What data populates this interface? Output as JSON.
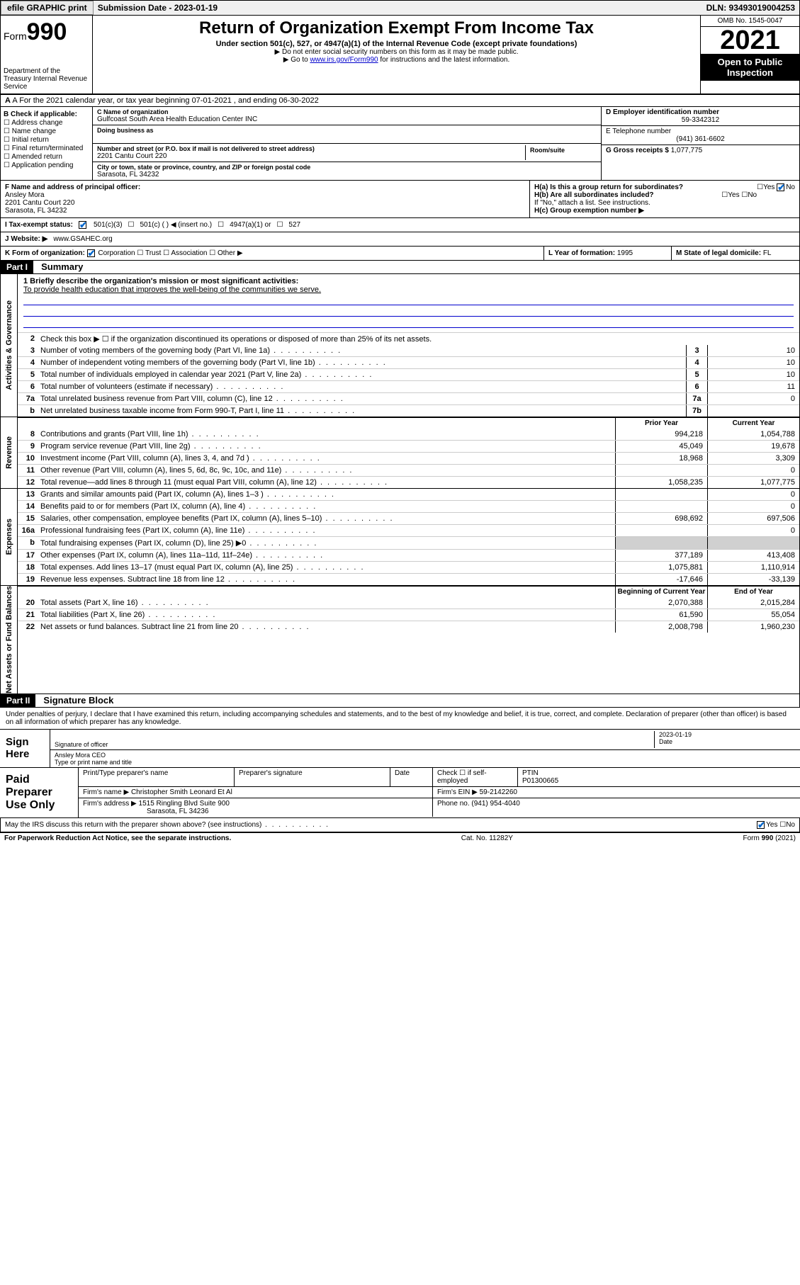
{
  "topbar": {
    "efile": "efile GRAPHIC print",
    "submission": "Submission Date - 2023-01-19",
    "dln": "DLN: 93493019004253"
  },
  "header": {
    "form_label": "Form",
    "form_number": "990",
    "dept": "Department of the Treasury Internal Revenue Service",
    "title": "Return of Organization Exempt From Income Tax",
    "sub1": "Under section 501(c), 527, or 4947(a)(1) of the Internal Revenue Code (except private foundations)",
    "sub2": "▶ Do not enter social security numbers on this form as it may be made public.",
    "sub3_pre": "▶ Go to ",
    "sub3_link": "www.irs.gov/Form990",
    "sub3_post": " for instructions and the latest information.",
    "omb": "OMB No. 1545-0047",
    "year": "2021",
    "open": "Open to Public Inspection"
  },
  "row_a": "A For the 2021 calendar year, or tax year beginning 07-01-2021  , and ending 06-30-2022",
  "col_b": {
    "header": "B Check if applicable:",
    "items": [
      "Address change",
      "Name change",
      "Initial return",
      "Final return/terminated",
      "Amended return",
      "Application pending"
    ]
  },
  "col_c": {
    "name_label": "C Name of organization",
    "name": "Gulfcoast South Area Health Education Center INC",
    "dba_label": "Doing business as",
    "addr_label": "Number and street (or P.O. box if mail is not delivered to street address)",
    "room_label": "Room/suite",
    "addr": "2201 Cantu Court 220",
    "city_label": "City or town, state or province, country, and ZIP or foreign postal code",
    "city": "Sarasota, FL  34232"
  },
  "col_de": {
    "d_label": "D Employer identification number",
    "d_val": "59-3342312",
    "e_label": "E Telephone number",
    "e_val": "(941) 361-6602",
    "g_label": "G Gross receipts $",
    "g_val": "1,077,775"
  },
  "section_f": {
    "label": "F Name and address of principal officer:",
    "name": "Ansley Mora",
    "addr1": "2201 Cantu Court 220",
    "addr2": "Sarasota, FL  34232"
  },
  "section_h": {
    "ha": "H(a)  Is this a group return for subordinates?",
    "ha_yes": "Yes",
    "ha_no": "No",
    "hb": "H(b)  Are all subordinates included?",
    "hb_yes": "Yes",
    "hb_no": "No",
    "hb_note": "If \"No,\" attach a list. See instructions.",
    "hc": "H(c)  Group exemption number ▶"
  },
  "row_i": {
    "label": "I   Tax-exempt status:",
    "opt1": "501(c)(3)",
    "opt2": "501(c) (  ) ◀ (insert no.)",
    "opt3": "4947(a)(1) or",
    "opt4": "527"
  },
  "row_j": {
    "label": "J   Website: ▶",
    "val": "www.GSAHEC.org"
  },
  "row_k": {
    "label": "K Form of organization:",
    "opts": [
      "Corporation",
      "Trust",
      "Association",
      "Other ▶"
    ]
  },
  "row_l": {
    "label": "L Year of formation:",
    "val": "1995"
  },
  "row_m": {
    "label": "M State of legal domicile:",
    "val": "FL"
  },
  "part1": {
    "hdr": "Part I",
    "title": "Summary",
    "vlabels": [
      "Activities & Governance",
      "Revenue",
      "Expenses",
      "Net Assets or Fund Balances"
    ],
    "q1": "1  Briefly describe the organization's mission or most significant activities:",
    "mission": "To provide health education that improves the well-being of the communities we serve.",
    "q2": "Check this box ▶ ☐  if the organization discontinued its operations or disposed of more than 25% of its net assets.",
    "lines_gov": [
      {
        "n": "3",
        "d": "Number of voting members of the governing body (Part VI, line 1a)",
        "box": "3",
        "v": "10"
      },
      {
        "n": "4",
        "d": "Number of independent voting members of the governing body (Part VI, line 1b)",
        "box": "4",
        "v": "10"
      },
      {
        "n": "5",
        "d": "Total number of individuals employed in calendar year 2021 (Part V, line 2a)",
        "box": "5",
        "v": "10"
      },
      {
        "n": "6",
        "d": "Total number of volunteers (estimate if necessary)",
        "box": "6",
        "v": "11"
      },
      {
        "n": "7a",
        "d": "Total unrelated business revenue from Part VIII, column (C), line 12",
        "box": "7a",
        "v": "0"
      },
      {
        "n": "b",
        "d": "Net unrelated business taxable income from Form 990-T, Part I, line 11",
        "box": "7b",
        "v": ""
      }
    ],
    "col_hdrs": {
      "prior": "Prior Year",
      "current": "Current Year"
    },
    "lines_rev": [
      {
        "n": "8",
        "d": "Contributions and grants (Part VIII, line 1h)",
        "p": "994,218",
        "c": "1,054,788"
      },
      {
        "n": "9",
        "d": "Program service revenue (Part VIII, line 2g)",
        "p": "45,049",
        "c": "19,678"
      },
      {
        "n": "10",
        "d": "Investment income (Part VIII, column (A), lines 3, 4, and 7d )",
        "p": "18,968",
        "c": "3,309"
      },
      {
        "n": "11",
        "d": "Other revenue (Part VIII, column (A), lines 5, 6d, 8c, 9c, 10c, and 11e)",
        "p": "",
        "c": "0"
      },
      {
        "n": "12",
        "d": "Total revenue—add lines 8 through 11 (must equal Part VIII, column (A), line 12)",
        "p": "1,058,235",
        "c": "1,077,775"
      }
    ],
    "lines_exp": [
      {
        "n": "13",
        "d": "Grants and similar amounts paid (Part IX, column (A), lines 1–3 )",
        "p": "",
        "c": "0"
      },
      {
        "n": "14",
        "d": "Benefits paid to or for members (Part IX, column (A), line 4)",
        "p": "",
        "c": "0"
      },
      {
        "n": "15",
        "d": "Salaries, other compensation, employee benefits (Part IX, column (A), lines 5–10)",
        "p": "698,692",
        "c": "697,506"
      },
      {
        "n": "16a",
        "d": "Professional fundraising fees (Part IX, column (A), line 11e)",
        "p": "",
        "c": "0"
      },
      {
        "n": "b",
        "d": "Total fundraising expenses (Part IX, column (D), line 25) ▶0",
        "p": "shade",
        "c": "shade"
      },
      {
        "n": "17",
        "d": "Other expenses (Part IX, column (A), lines 11a–11d, 11f–24e)",
        "p": "377,189",
        "c": "413,408"
      },
      {
        "n": "18",
        "d": "Total expenses. Add lines 13–17 (must equal Part IX, column (A), line 25)",
        "p": "1,075,881",
        "c": "1,110,914"
      },
      {
        "n": "19",
        "d": "Revenue less expenses. Subtract line 18 from line 12",
        "p": "-17,646",
        "c": "-33,139"
      }
    ],
    "col_hdrs2": {
      "begin": "Beginning of Current Year",
      "end": "End of Year"
    },
    "lines_net": [
      {
        "n": "20",
        "d": "Total assets (Part X, line 16)",
        "p": "2,070,388",
        "c": "2,015,284"
      },
      {
        "n": "21",
        "d": "Total liabilities (Part X, line 26)",
        "p": "61,590",
        "c": "55,054"
      },
      {
        "n": "22",
        "d": "Net assets or fund balances. Subtract line 21 from line 20",
        "p": "2,008,798",
        "c": "1,960,230"
      }
    ]
  },
  "part2": {
    "hdr": "Part II",
    "title": "Signature Block",
    "declaration": "Under penalties of perjury, I declare that I have examined this return, including accompanying schedules and statements, and to the best of my knowledge and belief, it is true, correct, and complete. Declaration of preparer (other than officer) is based on all information of which preparer has any knowledge.",
    "sign_here": "Sign Here",
    "sig_officer": "Signature of officer",
    "sig_date": "2023-01-19",
    "date_label": "Date",
    "officer_name": "Ansley Mora CEO",
    "type_name": "Type or print name and title",
    "paid": "Paid Preparer Use Only",
    "prep_name_label": "Print/Type preparer's name",
    "prep_sig_label": "Preparer's signature",
    "prep_date_label": "Date",
    "check_if": "Check ☐ if self-employed",
    "ptin_label": "PTIN",
    "ptin": "P01300665",
    "firm_name_label": "Firm's name    ▶",
    "firm_name": "Christopher Smith Leonard Et Al",
    "firm_ein_label": "Firm's EIN ▶",
    "firm_ein": "59-2142260",
    "firm_addr_label": "Firm's address ▶",
    "firm_addr": "1515 Ringling Blvd Suite 900",
    "firm_city": "Sarasota, FL  34236",
    "phone_label": "Phone no.",
    "phone": "(941) 954-4040",
    "discuss": "May the IRS discuss this return with the preparer shown above? (see instructions)",
    "discuss_yes": "Yes",
    "discuss_no": "No"
  },
  "footer": {
    "left": "For Paperwork Reduction Act Notice, see the separate instructions.",
    "mid": "Cat. No. 11282Y",
    "right": "Form 990 (2021)"
  }
}
